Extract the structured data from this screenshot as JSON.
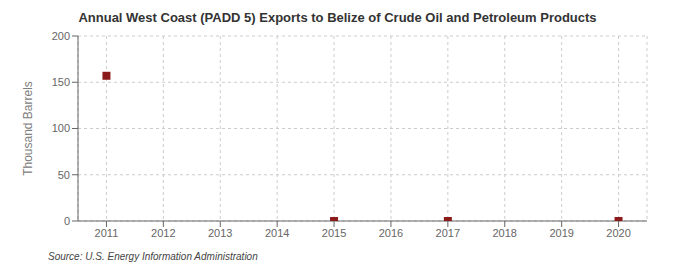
{
  "chart_data": {
    "type": "scatter",
    "title": "Annual West Coast (PADD 5) Exports to Belize of Crude Oil and Petroleum Products",
    "y_label": "Thousand Barrels",
    "source": "Source: U.S. Energy Information Administration",
    "x": [
      2011,
      2015,
      2017,
      2020
    ],
    "values": [
      157,
      0,
      0,
      0
    ],
    "color": "#8b1a1a",
    "marker": "square",
    "xlim": [
      2010.5,
      2020.5
    ],
    "xticks": [
      2011,
      2012,
      2013,
      2014,
      2015,
      2016,
      2017,
      2018,
      2019,
      2020
    ],
    "ylim": [
      0,
      200
    ],
    "yticks": [
      0,
      50,
      100,
      150,
      200
    ],
    "grid": true
  }
}
